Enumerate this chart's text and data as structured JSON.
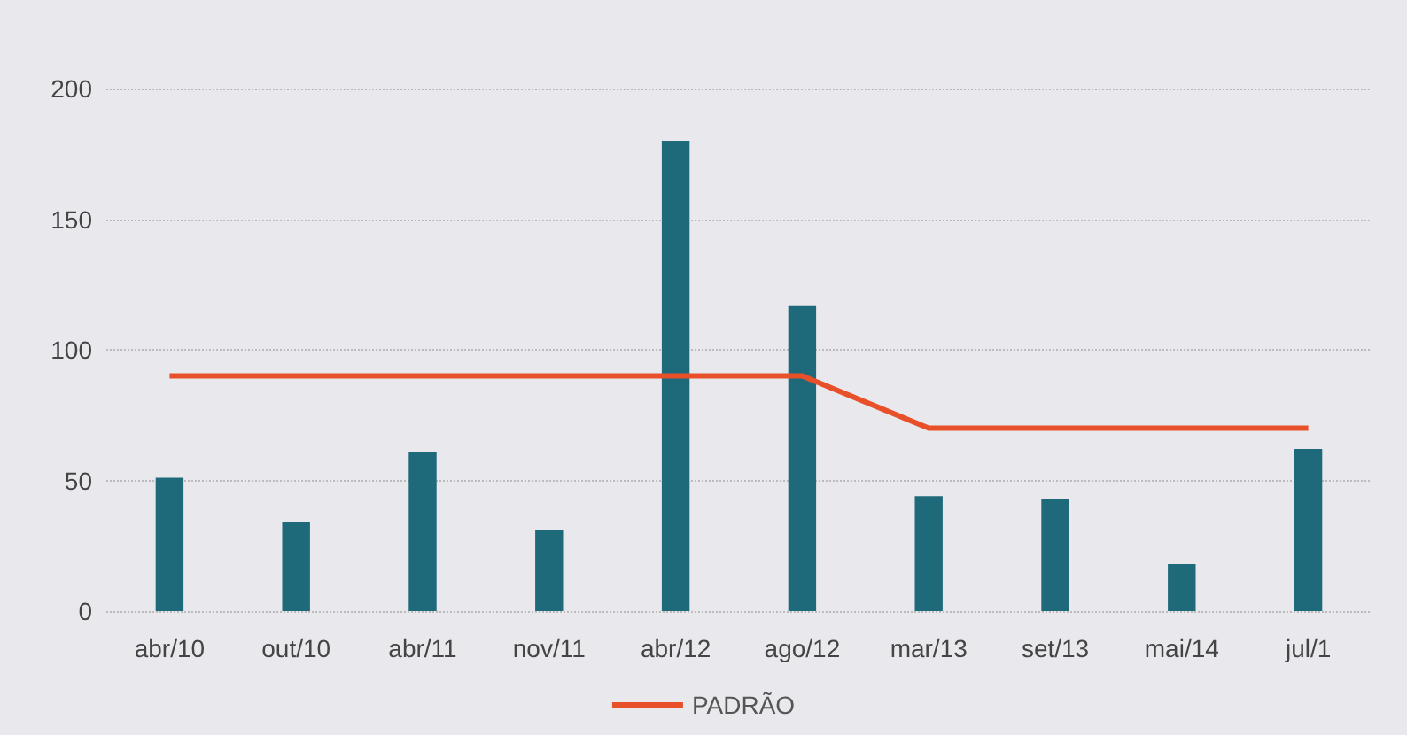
{
  "chart_data": {
    "type": "bar",
    "categories": [
      "abr/10",
      "out/10",
      "abr/11",
      "nov/11",
      "abr/12",
      "ago/12",
      "mar/13",
      "set/13",
      "mai/14",
      "jul/1"
    ],
    "series": [
      {
        "color": "#1f6a7a",
        "values": [
          51,
          34,
          61,
          31,
          180,
          117,
          44,
          43,
          18,
          62
        ]
      },
      {
        "type": "line",
        "name": "PADRÃO",
        "color": "#e8502a",
        "values": [
          90,
          90,
          90,
          90,
          90,
          90,
          70,
          70,
          70,
          70
        ]
      }
    ],
    "ylim": [
      0,
      200
    ],
    "yticks": [
      0,
      50,
      100,
      150,
      200
    ],
    "grid": "y",
    "legend": "bottom",
    "marker": "none"
  }
}
